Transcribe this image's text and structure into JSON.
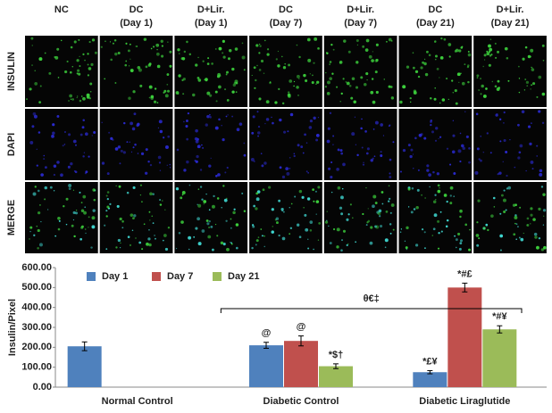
{
  "panel": {
    "column_headers": [
      [
        "NC"
      ],
      [
        "DC",
        "(Day 1)"
      ],
      [
        "D+Lir.",
        "(Day 1)"
      ],
      [
        "DC",
        "(Day 7)"
      ],
      [
        "D+Lir.",
        "(Day 7)"
      ],
      [
        "DC",
        "(Day 21)"
      ],
      [
        "D+Lir.",
        "(Day 21)"
      ]
    ],
    "row_labels": [
      "INSULIN",
      "DAPI",
      "MERGE"
    ]
  },
  "chart_data": {
    "type": "bar",
    "ylabel": "Insulin/Pixel",
    "categories": [
      "Normal Control",
      "Diabetic Control",
      "Diabetic Liraglutide"
    ],
    "series": [
      {
        "name": "Day 1",
        "color": "#4f81bd",
        "values": [
          205,
          210,
          75
        ],
        "errors": [
          22,
          15,
          8
        ],
        "annotations": [
          null,
          "@",
          "*£¥"
        ]
      },
      {
        "name": "Day 7",
        "color": "#c0504d",
        "values": [
          null,
          232,
          500
        ],
        "errors": [
          null,
          25,
          22
        ],
        "annotations": [
          null,
          "@",
          "*#£"
        ]
      },
      {
        "name": "Day 21",
        "color": "#9bbb59",
        "values": [
          null,
          105,
          290
        ],
        "errors": [
          null,
          12,
          18
        ],
        "annotations": [
          null,
          "*$†",
          "*#¥"
        ]
      }
    ],
    "bracket_label": "θ€‡",
    "ylim": [
      0,
      600
    ],
    "yticks": [
      {
        "value": 0,
        "label": "0.00"
      },
      {
        "value": 100,
        "label": "100.00"
      },
      {
        "value": 200,
        "label": "200.00"
      },
      {
        "value": 300,
        "label": "300.00"
      },
      {
        "value": 400,
        "label": "400.00"
      },
      {
        "value": 500,
        "label": "500.00"
      },
      {
        "value": 600,
        "label": "600.00"
      }
    ],
    "legend": "top"
  }
}
